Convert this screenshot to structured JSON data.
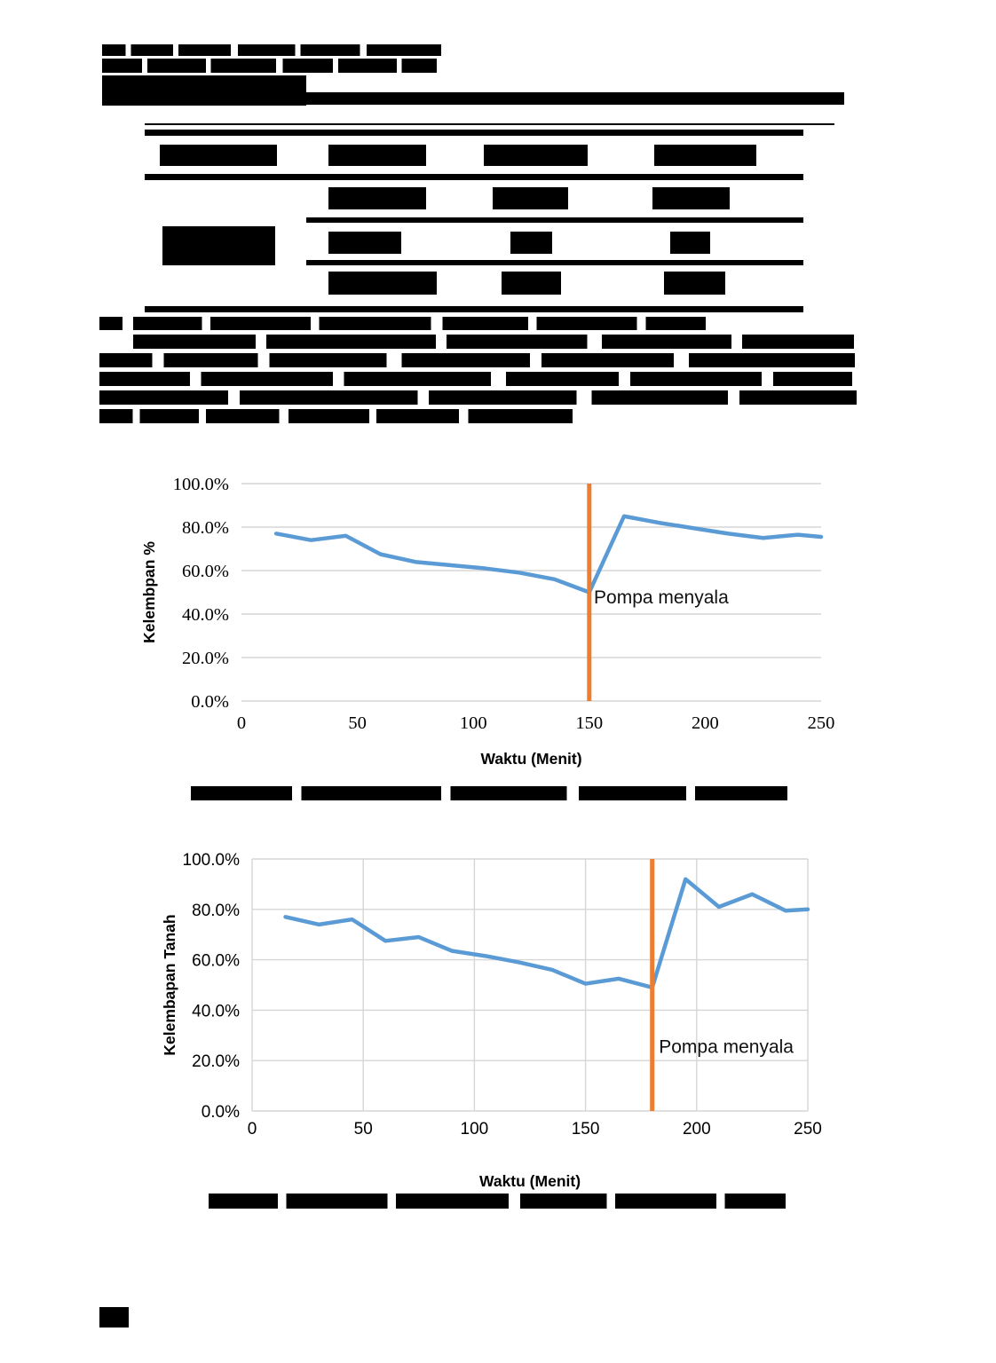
{
  "colors": {
    "line_blue": "#5B9BD5",
    "line_orange": "#ED7D31",
    "grid": "#D6D6D6",
    "redaction": "#000000"
  },
  "chart_data": [
    {
      "type": "line",
      "title": "",
      "xlabel": "Waktu (Menit)",
      "ylabel": "Kelembpan %",
      "x": [
        15,
        30,
        45,
        60,
        75,
        90,
        105,
        120,
        135,
        150,
        165,
        180,
        195,
        210,
        225,
        240,
        250
      ],
      "values": [
        77,
        74,
        76,
        67.5,
        64,
        62.5,
        61,
        59,
        56,
        50,
        85,
        82,
        79.5,
        77,
        75,
        76.5,
        75.5
      ],
      "xlim": [
        0,
        250
      ],
      "ylim": [
        0,
        100
      ],
      "xticks": [
        0,
        50,
        100,
        150,
        200,
        250
      ],
      "xtick_labels": [
        "0",
        "50",
        "100",
        "150",
        "200",
        "250"
      ],
      "yticks": [
        0,
        20,
        40,
        60,
        80,
        100
      ],
      "ytick_labels": [
        "0.0%",
        "20.0%",
        "40.0%",
        "60.0%",
        "80.0%",
        "100.0%"
      ],
      "grid": "horizontal",
      "legend": "none",
      "line_color": "#5B9BD5",
      "vline": {
        "x": 150,
        "color": "#ED7D31",
        "label": "Pompa menyala"
      },
      "annotation": {
        "text": "Pompa menyala",
        "x": 152,
        "y": 45
      }
    },
    {
      "type": "line",
      "title": "",
      "xlabel": "Waktu (Menit)",
      "ylabel": "Kelembapan Tanah",
      "x": [
        15,
        30,
        45,
        60,
        75,
        90,
        105,
        120,
        135,
        150,
        165,
        180,
        195,
        210,
        225,
        240,
        250
      ],
      "values": [
        77,
        74,
        76,
        67.5,
        69,
        63.5,
        61.5,
        59,
        56,
        50.5,
        52.5,
        49,
        92,
        81,
        86,
        79.5,
        80
      ],
      "xlim": [
        0,
        250
      ],
      "ylim": [
        0,
        100
      ],
      "xticks": [
        0,
        50,
        100,
        150,
        200,
        250
      ],
      "xtick_labels": [
        "0",
        "50",
        "100",
        "150",
        "200",
        "250"
      ],
      "yticks": [
        0,
        20,
        40,
        60,
        80,
        100
      ],
      "ytick_labels": [
        "0.0%",
        "20.0%",
        "40.0%",
        "60.0%",
        "80.0%",
        "100.0%"
      ],
      "grid": "both",
      "legend": "none",
      "line_color": "#5B9BD5",
      "vline": {
        "x": 180,
        "color": "#ED7D31",
        "label": "Pompa menyala"
      },
      "annotation": {
        "text": "Pompa menyala",
        "x": 183,
        "y": 23
      }
    }
  ]
}
